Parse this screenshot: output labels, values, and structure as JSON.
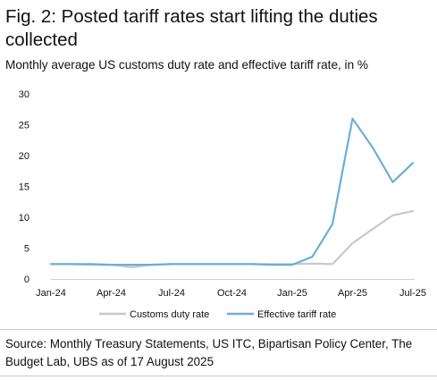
{
  "header": {
    "title": "Fig. 2: Posted tariff rates start lifting the duties collected",
    "subtitle": "Monthly average US customs duty rate and effective tariff rate, in %"
  },
  "footer": {
    "source": "Source: Monthly Treasury Statements, US ITC, Bipartisan Policy Center, The Budget Lab, UBS as of 17 August 2025"
  },
  "colors": {
    "customs_duty_rate": "#c8c8c8",
    "effective_tariff_rate": "#6cafd6",
    "axis": "#d0d0d0",
    "text": "#111111"
  },
  "chart_data": {
    "type": "line",
    "title": "Fig. 2: Posted tariff rates start lifting the duties collected",
    "subtitle": "Monthly average US customs duty rate and effective tariff rate, in %",
    "x": [
      "2024-01",
      "2024-02",
      "2024-03",
      "2024-04",
      "2024-05",
      "2024-06",
      "2024-07",
      "2024-08",
      "2024-09",
      "2024-10",
      "2024-11",
      "2024-12",
      "2025-01",
      "2025-02",
      "2025-03",
      "2025-04",
      "2025-05",
      "2025-06",
      "2025-07"
    ],
    "x_tick_labels": [
      "Jan-24",
      "Apr-24",
      "Jul-24",
      "Oct-24",
      "Jan-25",
      "Apr-25",
      "Jul-25"
    ],
    "x_tick_months": [
      "2024-01",
      "2024-04",
      "2024-07",
      "2024-10",
      "2025-01",
      "2025-04",
      "2025-07"
    ],
    "ylim": [
      0,
      30
    ],
    "y_ticks": [
      0,
      5,
      10,
      15,
      20,
      25,
      30
    ],
    "grid": false,
    "legend_position": "bottom",
    "series": [
      {
        "name": "Customs duty rate",
        "color": "#c8c8c8",
        "values": [
          2.4,
          2.4,
          2.3,
          2.3,
          1.9,
          2.3,
          2.4,
          2.4,
          2.4,
          2.4,
          2.4,
          2.4,
          2.4,
          2.5,
          2.4,
          5.8,
          8.1,
          10.3,
          11.0
        ]
      },
      {
        "name": "Effective tariff rate",
        "color": "#6cafd6",
        "values": [
          2.4,
          2.4,
          2.4,
          2.3,
          2.3,
          2.3,
          2.4,
          2.4,
          2.4,
          2.4,
          2.4,
          2.3,
          2.3,
          3.6,
          8.9,
          26.0,
          21.3,
          15.7,
          18.8
        ]
      }
    ]
  }
}
